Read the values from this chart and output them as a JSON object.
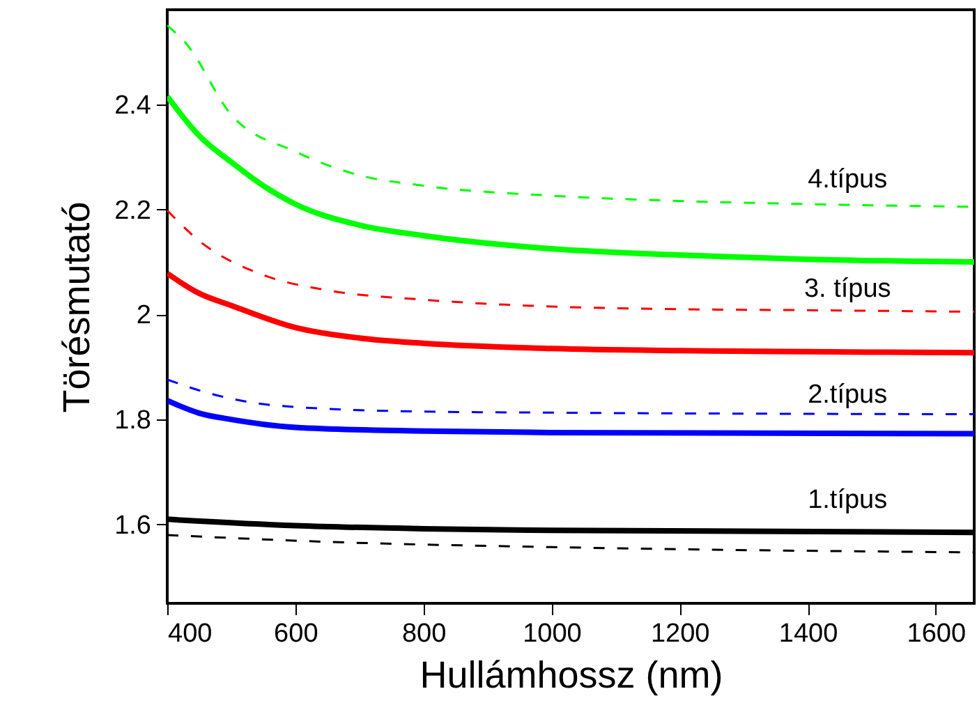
{
  "chart_data": {
    "type": "line",
    "xlabel": "Hullámhossz (nm)",
    "ylabel": "Törésmutató",
    "xlim": [
      400,
      1660
    ],
    "ylim": [
      1.45,
      2.58
    ],
    "xticks": [
      400,
      600,
      800,
      1000,
      1200,
      1400,
      1600
    ],
    "yticks": [
      1.6,
      1.8,
      2,
      2.2,
      2.4
    ],
    "grid": false,
    "marker": "none",
    "series": [
      {
        "color": "#00ff00",
        "line_style": "dashed",
        "x": [
          400,
          430,
          500,
          600,
          700,
          800,
          1000,
          1200,
          1400,
          1660
        ],
        "values": [
          2.55,
          2.515,
          2.38,
          2.31,
          2.265,
          2.245,
          2.226,
          2.216,
          2.21,
          2.205
        ]
      },
      {
        "color": "#00ff00",
        "line_style": "solid",
        "x": [
          400,
          450,
          500,
          550,
          600,
          700,
          800,
          1000,
          1200,
          1400,
          1660
        ],
        "values": [
          2.415,
          2.34,
          2.29,
          2.245,
          2.21,
          2.17,
          2.15,
          2.125,
          2.113,
          2.105,
          2.1
        ]
      },
      {
        "color": "#ff0000",
        "line_style": "dashed",
        "x": [
          400,
          450,
          550,
          650,
          800,
          1000,
          1200,
          1400,
          1660
        ],
        "values": [
          2.198,
          2.14,
          2.075,
          2.046,
          2.028,
          2.015,
          2.01,
          2.008,
          2.005
        ]
      },
      {
        "color": "#ff0000",
        "line_style": "solid",
        "x": [
          400,
          450,
          500,
          600,
          700,
          800,
          1000,
          1200,
          1400,
          1660
        ],
        "values": [
          2.078,
          2.04,
          2.017,
          1.975,
          1.955,
          1.945,
          1.935,
          1.931,
          1.929,
          1.927
        ]
      },
      {
        "color": "#0000ff",
        "line_style": "dashed",
        "x": [
          400,
          465,
          575,
          800,
          1000,
          1660
        ],
        "values": [
          1.876,
          1.85,
          1.826,
          1.815,
          1.813,
          1.81
        ]
      },
      {
        "color": "#0000ff",
        "line_style": "solid",
        "x": [
          400,
          450,
          500,
          600,
          800,
          1000,
          1660
        ],
        "values": [
          1.836,
          1.812,
          1.8,
          1.785,
          1.778,
          1.775,
          1.773
        ]
      },
      {
        "color": "#000000",
        "line_style": "solid",
        "x": [
          400,
          600,
          800,
          1000,
          1660
        ],
        "values": [
          1.61,
          1.598,
          1.592,
          1.589,
          1.585
        ]
      },
      {
        "color": "#000000",
        "line_style": "dashed",
        "x": [
          400,
          650,
          1000,
          1660
        ],
        "values": [
          1.58,
          1.567,
          1.557,
          1.547
        ]
      }
    ],
    "annotations": [
      "4.típus",
      "3. típus",
      "2.típus",
      "1.típus"
    ]
  }
}
